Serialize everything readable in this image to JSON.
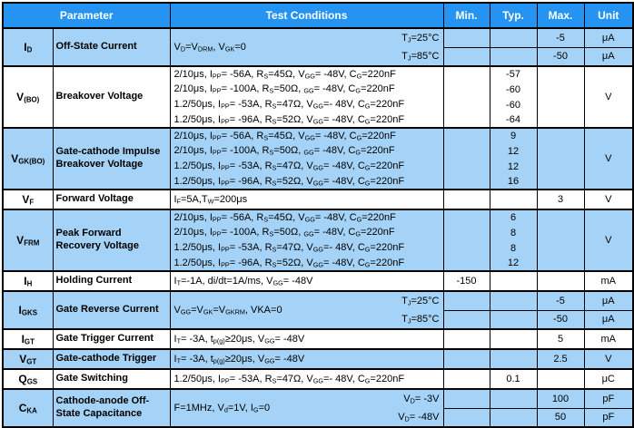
{
  "colors": {
    "header_bg": "#2493F2",
    "row_shade": "#A5D3F7",
    "border": "#000000",
    "header_text": "#FFFFFF"
  },
  "table": {
    "header": {
      "parameter": "Parameter",
      "test_conditions": "Test Conditions",
      "min": "Min.",
      "typ": "Typ.",
      "max": "Max.",
      "unit": "Unit"
    },
    "groups": [
      {
        "symbol": "I_{D}",
        "name": "Off-State Current",
        "condition": "V_{D}=V_{DRM}, V_{GK}=0",
        "rows": [
          {
            "cond_right": "T_{J}=25°C",
            "min": "",
            "typ": "",
            "max": "-5",
            "unit": "μA"
          },
          {
            "cond_right": "T_{J}=85°C",
            "min": "",
            "typ": "",
            "max": "-50",
            "unit": "μA"
          }
        ]
      },
      {
        "symbol": "V_{(BO)}",
        "name": "Breakover Voltage",
        "unit": "V",
        "rows": [
          {
            "cond": "2/10μs, I_{PP}= -56A, R_{S}=45Ω, V_{GG}= -48V, C_{G}=220nF",
            "typ": "-57"
          },
          {
            "cond": "2/10μs, I_{PP}= -100A, R_{S}=50Ω, _{GG}= -48V, C_{G}=220nF",
            "typ": "-60"
          },
          {
            "cond": "1.2/50μs, I_{PP}= -53A, R_{S}=47Ω, V_{GG}=- 48V, C_{G}=220nF",
            "typ": "-60"
          },
          {
            "cond": "1.2/50μs, I_{PP}= -96A, R_{S}=52Ω, V_{GG}= -48V, C_{G}=220nF",
            "typ": "-64"
          }
        ]
      },
      {
        "symbol": "V_{GK(BO)}",
        "name": "Gate-cathode Impulse Breakover Voltage",
        "unit": "V",
        "rows": [
          {
            "cond": "2/10μs, I_{PP}= -56A, R_{S}=45Ω, V_{GG}= -48V, C_{G}=220nF",
            "typ": "9"
          },
          {
            "cond": "2/10μs, I_{PP}= -100A, R_{S}=50Ω, _{GG}= -48V, C_{G}=220nF",
            "typ": "12"
          },
          {
            "cond": "1.2/50μs, I_{PP}= -53A, R_{S}=47Ω, V_{GG}= -48V, C_{G}=220nF",
            "typ": "12"
          },
          {
            "cond": "1.2/50μs, I_{PP}= -96A, R_{S}=52Ω, V_{GG}= -48V, C_{G}=220nF",
            "typ": "16"
          }
        ]
      },
      {
        "symbol": "V_{F}",
        "name": "Forward Voltage",
        "condition": "I_{F}=5A,T_{W}=200μs",
        "min": "",
        "typ": "",
        "max": "3",
        "unit": "V"
      },
      {
        "symbol": "V_{FRM}",
        "name": "Peak Forward Recovery Voltage",
        "unit": "V",
        "rows": [
          {
            "cond": "2/10μs, I_{PP}= -56A, R_{S}=45Ω, V_{GG}= -48V, C_{G}=220nF",
            "typ": "6"
          },
          {
            "cond": "2/10μs, I_{PP}= -100A, R_{S}=50Ω, _{GG}= -48V, C_{G}=220nF",
            "typ": "8"
          },
          {
            "cond": "1.2/50μs, I_{PP}= -53A, R_{S}=47Ω, V_{GG}=- 48V, C_{G}=220nF",
            "typ": "8"
          },
          {
            "cond": "1.2/50μs, I_{PP}= -96A, R_{S}=52Ω, V_{GG}= -48V, C_{G}=220nF",
            "typ": "12"
          }
        ]
      },
      {
        "symbol": "I_{H}",
        "name": "Holding Current",
        "condition": "I_{T}=-1A, di/dt=1A/ms, V_{GG}= -48V",
        "min": "-150",
        "typ": "",
        "max": "",
        "unit": "mA"
      },
      {
        "symbol": "I_{GKS}",
        "name": "Gate Reverse Current",
        "condition": "V_{GG}=V_{GK}=V_{GKRM}, VKA=0",
        "rows": [
          {
            "cond_right": "T_{J}=25°C",
            "min": "",
            "typ": "",
            "max": "-5",
            "unit": "μA"
          },
          {
            "cond_right": "T_{J}=85°C",
            "min": "",
            "typ": "",
            "max": "-50",
            "unit": "μA"
          }
        ]
      },
      {
        "symbol": "I_{GT}",
        "name": "Gate Trigger Current",
        "condition": "I_{T}= -3A, t_{p(g)}≥20μs, V_{GG}= -48V",
        "min": "",
        "typ": "",
        "max": "5",
        "unit": "mA"
      },
      {
        "symbol": "V_{GT}",
        "name": "Gate-cathode Trigger",
        "condition": "I_{T}= -3A, t_{p(g)}≥20μs, V_{GG}= -48V",
        "min": "",
        "typ": "",
        "max": "2.5",
        "unit": "V"
      },
      {
        "symbol": "Q_{GS}",
        "name": "Gate Switching",
        "condition": "1.2/50μs, I_{PP}= -53A, R_{S}=47Ω, V_{GG}=- 48V, C_{G}=220nF",
        "min": "",
        "typ": "0.1",
        "max": "",
        "unit": "μC"
      },
      {
        "symbol": "C_{KA}",
        "name": "Cathode-anode Off-State Capacitance",
        "condition": "F=1MHz, V_{d}=1V, I_{G}=0",
        "rows": [
          {
            "cond_right": "V_{D}= -3V",
            "min": "",
            "typ": "",
            "max": "100",
            "unit": "pF"
          },
          {
            "cond_right": "V_{D}= -48V",
            "min": "",
            "typ": "",
            "max": "50",
            "unit": "pF"
          }
        ]
      }
    ]
  }
}
